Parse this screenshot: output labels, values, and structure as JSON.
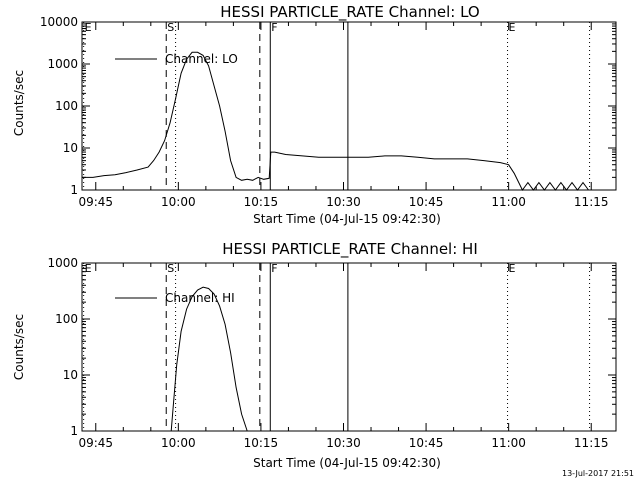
{
  "chart_data": [
    {
      "type": "line",
      "title": "HESSI PARTICLE_RATE Channel: LO",
      "xlabel": "Start Time (04-Jul-15 09:42:30)",
      "ylabel": "Counts/sec",
      "yscale": "log",
      "ylim": [
        1,
        10000
      ],
      "xlim_minutes": [
        0,
        97
      ],
      "x_tick_labels": [
        "09:45",
        "10:00",
        "10:15",
        "10:30",
        "10:45",
        "11:00",
        "11:15"
      ],
      "x_tick_minutes": [
        2.5,
        17.5,
        32.5,
        47.5,
        62.5,
        77.5,
        92.5
      ],
      "y_tick_labels": [
        "1",
        "10",
        "100",
        "1000",
        "10000"
      ],
      "y_tick_values": [
        1,
        10,
        100,
        1000,
        10000
      ],
      "legend": "Channel: LO",
      "legend_position": "top-left",
      "markers": [
        {
          "label": "E",
          "minute": 0.3,
          "style": "dotted"
        },
        {
          "label": "S",
          "minute": 15.3,
          "style": "dashed"
        },
        {
          "label": "",
          "minute": 17.0,
          "style": "dotted"
        },
        {
          "label": "",
          "minute": 32.3,
          "style": "dashed"
        },
        {
          "label": "F",
          "minute": 34.2,
          "style": "solid"
        },
        {
          "label": "",
          "minute": 48.3,
          "style": "solid"
        },
        {
          "label": "E",
          "minute": 77.3,
          "style": "dotted"
        },
        {
          "label": "",
          "minute": 92.2,
          "style": "dotted"
        }
      ],
      "series": [
        {
          "name": "Channel: LO",
          "x": [
            0,
            2,
            4,
            6,
            8,
            10,
            12,
            13,
            14,
            15,
            16,
            17,
            18,
            19,
            20,
            21,
            22,
            23,
            24,
            25,
            26,
            27,
            28,
            29,
            30,
            31,
            32,
            33,
            34,
            34.3,
            35,
            37,
            40,
            43,
            46,
            49,
            52,
            55,
            58,
            61,
            64,
            67,
            70,
            73,
            76,
            77.5,
            78.5,
            80,
            81,
            82,
            83,
            84,
            85,
            86,
            87,
            88,
            89,
            90,
            91,
            92
          ],
          "values": [
            2,
            2,
            2.2,
            2.3,
            2.6,
            3,
            3.5,
            5,
            8,
            15,
            40,
            150,
            600,
            1300,
            1900,
            1900,
            1600,
            900,
            300,
            100,
            25,
            5,
            2,
            1.7,
            1.8,
            1.7,
            2,
            1.8,
            1.9,
            8,
            8,
            7,
            6.5,
            6,
            6,
            6,
            6,
            6.5,
            6.5,
            6,
            5.5,
            5.5,
            5.5,
            5,
            4.5,
            4,
            2.5,
            1,
            1.5,
            1,
            1.5,
            1,
            1.5,
            1,
            1.5,
            1,
            1.5,
            1,
            1.5,
            1
          ]
        }
      ]
    },
    {
      "type": "line",
      "title": "HESSI PARTICLE_RATE Channel: HI",
      "xlabel": "Start Time (04-Jul-15 09:42:30)",
      "ylabel": "Counts/sec",
      "yscale": "log",
      "ylim": [
        1,
        1000
      ],
      "xlim_minutes": [
        0,
        97
      ],
      "x_tick_labels": [
        "09:45",
        "10:00",
        "10:15",
        "10:30",
        "10:45",
        "11:00",
        "11:15"
      ],
      "x_tick_minutes": [
        2.5,
        17.5,
        32.5,
        47.5,
        62.5,
        77.5,
        92.5
      ],
      "y_tick_labels": [
        "1",
        "10",
        "100",
        "1000"
      ],
      "y_tick_values": [
        1,
        10,
        100,
        1000
      ],
      "legend": "Channel: HI",
      "legend_position": "top-left",
      "markers": [
        {
          "label": "E",
          "minute": 0.3,
          "style": "dotted"
        },
        {
          "label": "S",
          "minute": 15.3,
          "style": "dashed"
        },
        {
          "label": "",
          "minute": 17.0,
          "style": "dotted"
        },
        {
          "label": "",
          "minute": 32.3,
          "style": "dashed"
        },
        {
          "label": "F",
          "minute": 34.2,
          "style": "solid"
        },
        {
          "label": "",
          "minute": 48.3,
          "style": "solid"
        },
        {
          "label": "E",
          "minute": 77.3,
          "style": "dotted"
        },
        {
          "label": "",
          "minute": 92.2,
          "style": "dotted"
        }
      ],
      "series": [
        {
          "name": "Channel: HI",
          "x": [
            16.2,
            16.6,
            17.2,
            18,
            19,
            20,
            21,
            22,
            23,
            24,
            25,
            26,
            27,
            28,
            29,
            30
          ],
          "values": [
            1,
            3,
            15,
            60,
            150,
            250,
            330,
            370,
            350,
            280,
            170,
            80,
            25,
            6,
            2,
            1
          ]
        }
      ]
    }
  ],
  "footer": {
    "timestamp": "13-Jul-2017 21:51"
  }
}
